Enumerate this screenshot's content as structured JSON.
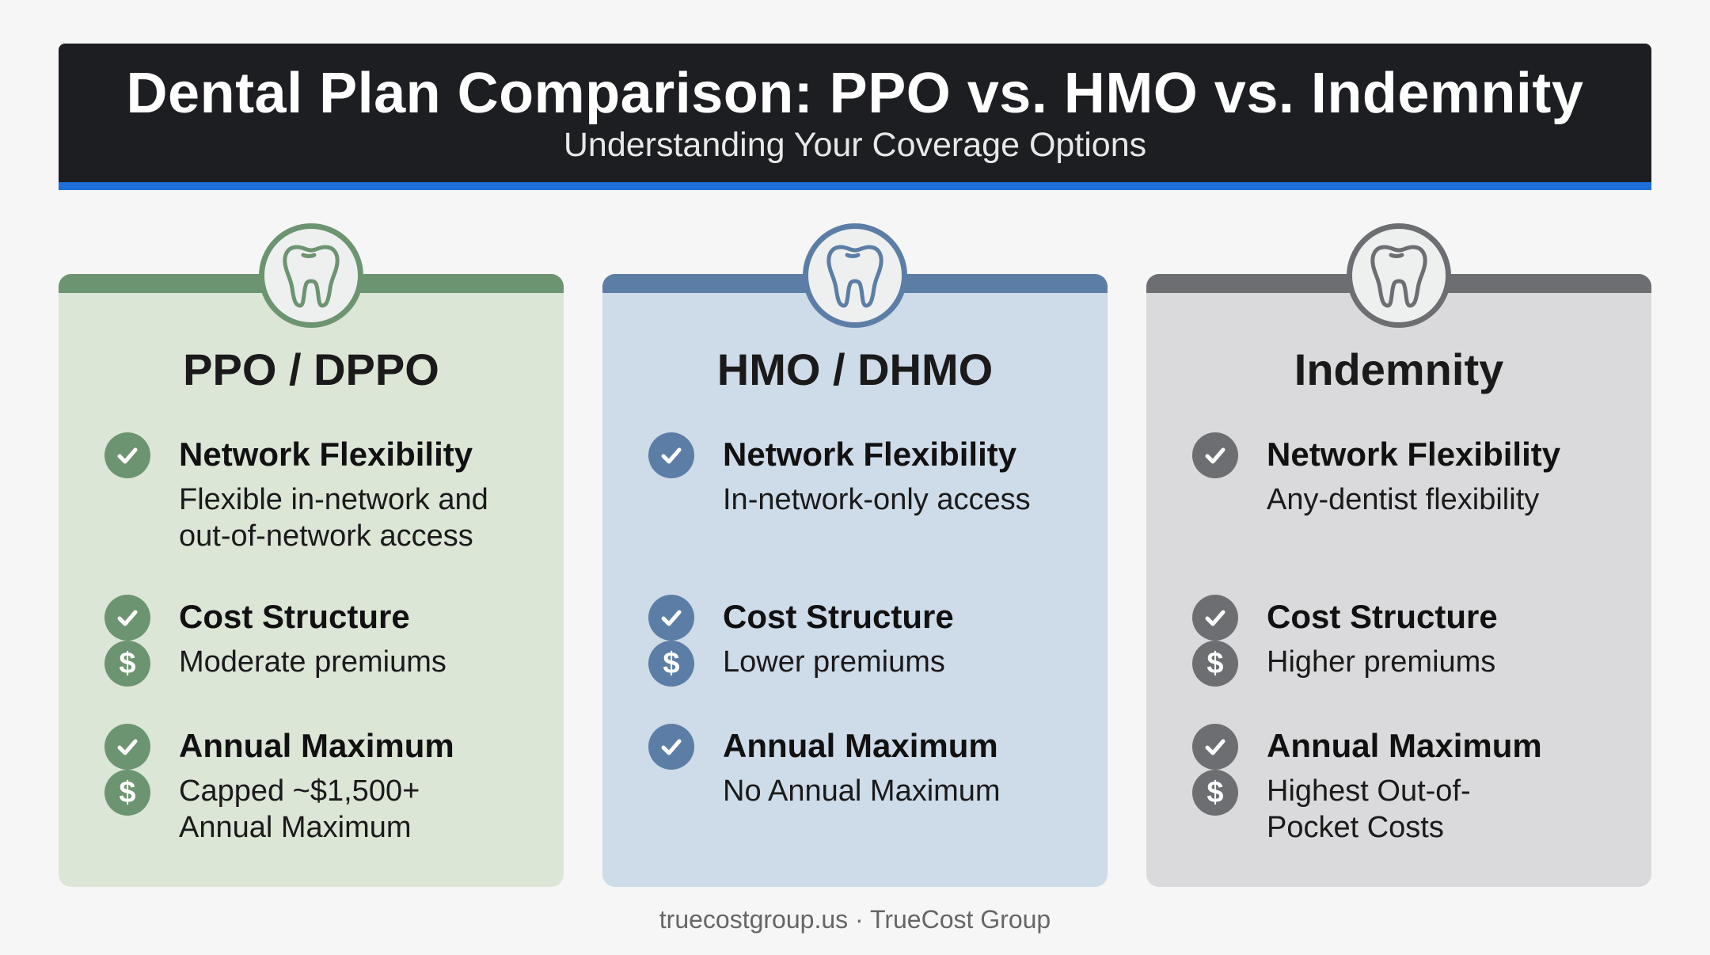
{
  "header": {
    "title": "Dental Plan Comparison: PPO vs. HMO vs. Indemnity",
    "subtitle": "Understanding Your Coverage Options"
  },
  "colors": {
    "header_bg": "#1c1e22",
    "accent_blue": "#1e6fd9",
    "ppo": "#6d9470",
    "hmo": "#5c7ea6",
    "indemnity": "#6d6e72"
  },
  "plans": [
    {
      "name": "PPO / DPPO",
      "icon": "tooth-icon",
      "network": {
        "title": "Network Flexibility",
        "desc": "Flexible in-network and out-of-network access"
      },
      "cost": {
        "title": "Cost Structure",
        "desc": "Moderate premiums"
      },
      "annual": {
        "title": "Annual Maximum",
        "desc": "Capped ~$1,500+ Annual Maximum"
      }
    },
    {
      "name": "HMO / DHMO",
      "icon": "tooth-icon",
      "network": {
        "title": "Network Flexibility",
        "desc": "In-network-only access"
      },
      "cost": {
        "title": "Cost Structure",
        "desc": "Lower premiums"
      },
      "annual": {
        "title": "Annual Maximum",
        "desc": "No Annual Maximum"
      }
    },
    {
      "name": "Indemnity",
      "icon": "tooth-icon",
      "network": {
        "title": "Network Flexibility",
        "desc": "Any-dentist flexibility"
      },
      "cost": {
        "title": "Cost Structure",
        "desc": "Higher premiums"
      },
      "annual": {
        "title": "Annual Maximum",
        "desc": "Highest Out-of-Pocket Costs"
      }
    }
  ],
  "footer": "truecostgroup.us · TrueCost Group"
}
